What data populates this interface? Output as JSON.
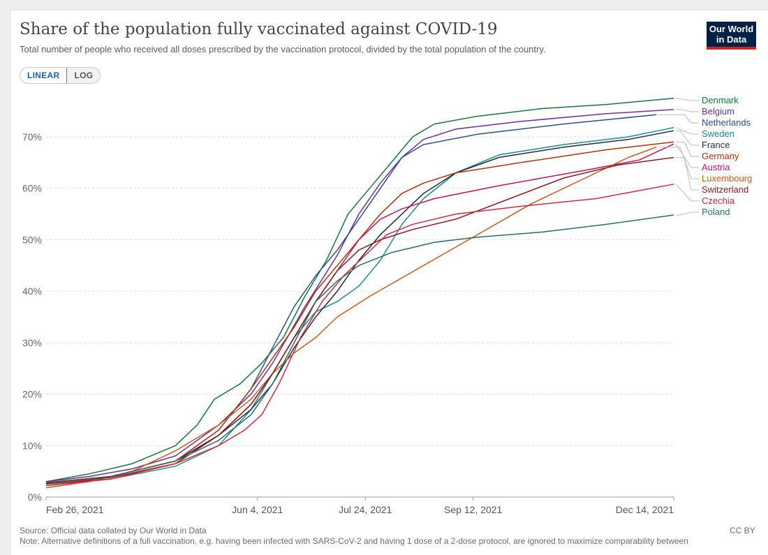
{
  "header": {
    "title": "Share of the population fully vaccinated against COVID-19",
    "subtitle": "Total number of people who received all doses prescribed by the vaccination protocol, divided by the total population of the country."
  },
  "logo": {
    "line1": "Our World",
    "line2": "in Data"
  },
  "scale_toggle": {
    "linear_label": "LINEAR",
    "log_label": "LOG",
    "selected": "LINEAR"
  },
  "footer": {
    "source": "Source: Official data collated by Our World in Data",
    "note": "Note: Alternative definitions of a full vaccination, e.g. having been infected with SARS-CoV-2 and having 1 dose of a 2-dose protocol, are ignored to maximize comparability between",
    "license": "CC BY"
  },
  "chart_data": {
    "type": "line",
    "title": "Share of the population fully vaccinated against COVID-19",
    "ylabel": "",
    "xlabel": "",
    "ylim": [
      0,
      77
    ],
    "xlim": [
      0,
      291
    ],
    "yticks": [
      0,
      10,
      20,
      30,
      40,
      50,
      60,
      70
    ],
    "ytick_labels": [
      "0%",
      "10%",
      "20%",
      "30%",
      "40%",
      "50%",
      "60%",
      "70%"
    ],
    "xticks": [
      {
        "day": 0,
        "label": "Feb 26, 2021"
      },
      {
        "day": 98,
        "label": "Jun 4, 2021"
      },
      {
        "day": 148,
        "label": "Jul 24, 2021"
      },
      {
        "day": 198,
        "label": "Sep 12, 2021"
      },
      {
        "day": 291,
        "label": "Dec 14, 2021"
      }
    ],
    "x_units": "days since Feb 26, 2021",
    "legend_position": "right",
    "series": [
      {
        "name": "Denmark",
        "color": "#15793b",
        "points": [
          [
            0,
            3
          ],
          [
            20,
            4.5
          ],
          [
            40,
            6.5
          ],
          [
            60,
            10
          ],
          [
            70,
            14
          ],
          [
            78,
            19
          ],
          [
            90,
            22
          ],
          [
            100,
            26
          ],
          [
            110,
            31
          ],
          [
            120,
            39
          ],
          [
            130,
            46
          ],
          [
            140,
            55
          ],
          [
            150,
            60
          ],
          [
            160,
            65
          ],
          [
            170,
            70
          ],
          [
            180,
            72.5
          ],
          [
            200,
            74
          ],
          [
            230,
            75.5
          ],
          [
            260,
            76.3
          ],
          [
            291,
            77.5
          ]
        ]
      },
      {
        "name": "Belgium",
        "color": "#6b2fa2",
        "points": [
          [
            0,
            3
          ],
          [
            20,
            4
          ],
          [
            40,
            5.5
          ],
          [
            60,
            8
          ],
          [
            80,
            14
          ],
          [
            95,
            20
          ],
          [
            105,
            26
          ],
          [
            120,
            37
          ],
          [
            135,
            47
          ],
          [
            145,
            55
          ],
          [
            155,
            61
          ],
          [
            165,
            66
          ],
          [
            175,
            69.5
          ],
          [
            190,
            71.5
          ],
          [
            220,
            73
          ],
          [
            260,
            74.5
          ],
          [
            291,
            75.3
          ]
        ]
      },
      {
        "name": "Netherlands",
        "color": "#2c4d8c",
        "points": [
          [
            0,
            2.8
          ],
          [
            30,
            4
          ],
          [
            60,
            7
          ],
          [
            80,
            13
          ],
          [
            95,
            21
          ],
          [
            105,
            29
          ],
          [
            115,
            37
          ],
          [
            125,
            43
          ],
          [
            135,
            48
          ],
          [
            145,
            54
          ],
          [
            155,
            60
          ],
          [
            165,
            66
          ],
          [
            175,
            68.5
          ],
          [
            200,
            70.5
          ],
          [
            240,
            72.5
          ],
          [
            283,
            74.3
          ]
        ]
      },
      {
        "name": "Sweden",
        "color": "#1d8a8a",
        "points": [
          [
            0,
            2.5
          ],
          [
            30,
            3.5
          ],
          [
            60,
            6
          ],
          [
            80,
            10
          ],
          [
            95,
            17
          ],
          [
            105,
            24
          ],
          [
            115,
            31
          ],
          [
            125,
            36
          ],
          [
            135,
            38
          ],
          [
            145,
            41
          ],
          [
            155,
            46
          ],
          [
            165,
            53
          ],
          [
            175,
            58
          ],
          [
            190,
            63
          ],
          [
            210,
            66.5
          ],
          [
            240,
            68.5
          ],
          [
            270,
            70
          ],
          [
            291,
            71.8
          ]
        ]
      },
      {
        "name": "France",
        "color": "#1e2a44",
        "points": [
          [
            0,
            2.8
          ],
          [
            30,
            4
          ],
          [
            60,
            7
          ],
          [
            80,
            12
          ],
          [
            95,
            17
          ],
          [
            105,
            22
          ],
          [
            115,
            29
          ],
          [
            125,
            35
          ],
          [
            135,
            40
          ],
          [
            145,
            46
          ],
          [
            155,
            51
          ],
          [
            165,
            55
          ],
          [
            175,
            59
          ],
          [
            190,
            63
          ],
          [
            210,
            66
          ],
          [
            240,
            68
          ],
          [
            270,
            69.5
          ],
          [
            291,
            71.2
          ]
        ]
      },
      {
        "name": "Germany",
        "color": "#b33009",
        "points": [
          [
            0,
            2.8
          ],
          [
            30,
            4
          ],
          [
            60,
            7
          ],
          [
            80,
            13
          ],
          [
            95,
            21
          ],
          [
            105,
            27
          ],
          [
            115,
            33
          ],
          [
            125,
            40
          ],
          [
            135,
            45
          ],
          [
            145,
            50
          ],
          [
            155,
            55
          ],
          [
            165,
            59
          ],
          [
            175,
            61
          ],
          [
            190,
            63
          ],
          [
            220,
            65
          ],
          [
            260,
            67.5
          ],
          [
            291,
            69
          ]
        ]
      },
      {
        "name": "Austria",
        "color": "#c6125c",
        "points": [
          [
            0,
            2.6
          ],
          [
            30,
            3.5
          ],
          [
            60,
            6.5
          ],
          [
            80,
            12
          ],
          [
            95,
            18
          ],
          [
            105,
            24
          ],
          [
            115,
            31
          ],
          [
            125,
            38
          ],
          [
            135,
            44
          ],
          [
            145,
            50
          ],
          [
            155,
            54
          ],
          [
            165,
            56
          ],
          [
            180,
            58
          ],
          [
            210,
            60.5
          ],
          [
            250,
            63.5
          ],
          [
            275,
            65.5
          ],
          [
            291,
            68.6
          ]
        ]
      },
      {
        "name": "Luxembourg",
        "color": "#c9591b",
        "points": [
          [
            0,
            1.8
          ],
          [
            20,
            3
          ],
          [
            40,
            5
          ],
          [
            60,
            9
          ],
          [
            80,
            14
          ],
          [
            95,
            19
          ],
          [
            105,
            24
          ],
          [
            115,
            28
          ],
          [
            125,
            31
          ],
          [
            135,
            35
          ],
          [
            150,
            39
          ],
          [
            175,
            45
          ],
          [
            200,
            51
          ],
          [
            225,
            57
          ],
          [
            250,
            62
          ],
          [
            270,
            66
          ],
          [
            283,
            68
          ]
        ]
      },
      {
        "name": "Switzerland",
        "color": "#8b1a1a",
        "points": [
          [
            0,
            2.6
          ],
          [
            30,
            3.8
          ],
          [
            60,
            6.5
          ],
          [
            80,
            12
          ],
          [
            95,
            18
          ],
          [
            105,
            24
          ],
          [
            115,
            31
          ],
          [
            125,
            38
          ],
          [
            135,
            44
          ],
          [
            145,
            48
          ],
          [
            155,
            50
          ],
          [
            170,
            52
          ],
          [
            190,
            54
          ],
          [
            215,
            58
          ],
          [
            240,
            62
          ],
          [
            265,
            64.5
          ],
          [
            291,
            66
          ]
        ]
      },
      {
        "name": "Czechia",
        "color": "#d6283e",
        "points": [
          [
            0,
            2.2
          ],
          [
            30,
            3.5
          ],
          [
            60,
            6.5
          ],
          [
            80,
            10
          ],
          [
            92,
            13
          ],
          [
            100,
            16
          ],
          [
            108,
            22
          ],
          [
            118,
            31
          ],
          [
            128,
            38
          ],
          [
            138,
            43
          ],
          [
            148,
            47
          ],
          [
            158,
            51
          ],
          [
            170,
            53
          ],
          [
            190,
            55
          ],
          [
            220,
            56.5
          ],
          [
            255,
            58
          ],
          [
            291,
            60.8
          ]
        ]
      },
      {
        "name": "Poland",
        "color": "#286e64",
        "points": [
          [
            0,
            2.5
          ],
          [
            30,
            4
          ],
          [
            60,
            7
          ],
          [
            80,
            11
          ],
          [
            95,
            16
          ],
          [
            105,
            22
          ],
          [
            115,
            30
          ],
          [
            125,
            38
          ],
          [
            135,
            42
          ],
          [
            145,
            45
          ],
          [
            160,
            47.5
          ],
          [
            180,
            49.5
          ],
          [
            200,
            50.5
          ],
          [
            230,
            51.5
          ],
          [
            260,
            53
          ],
          [
            291,
            54.8
          ]
        ]
      }
    ]
  }
}
